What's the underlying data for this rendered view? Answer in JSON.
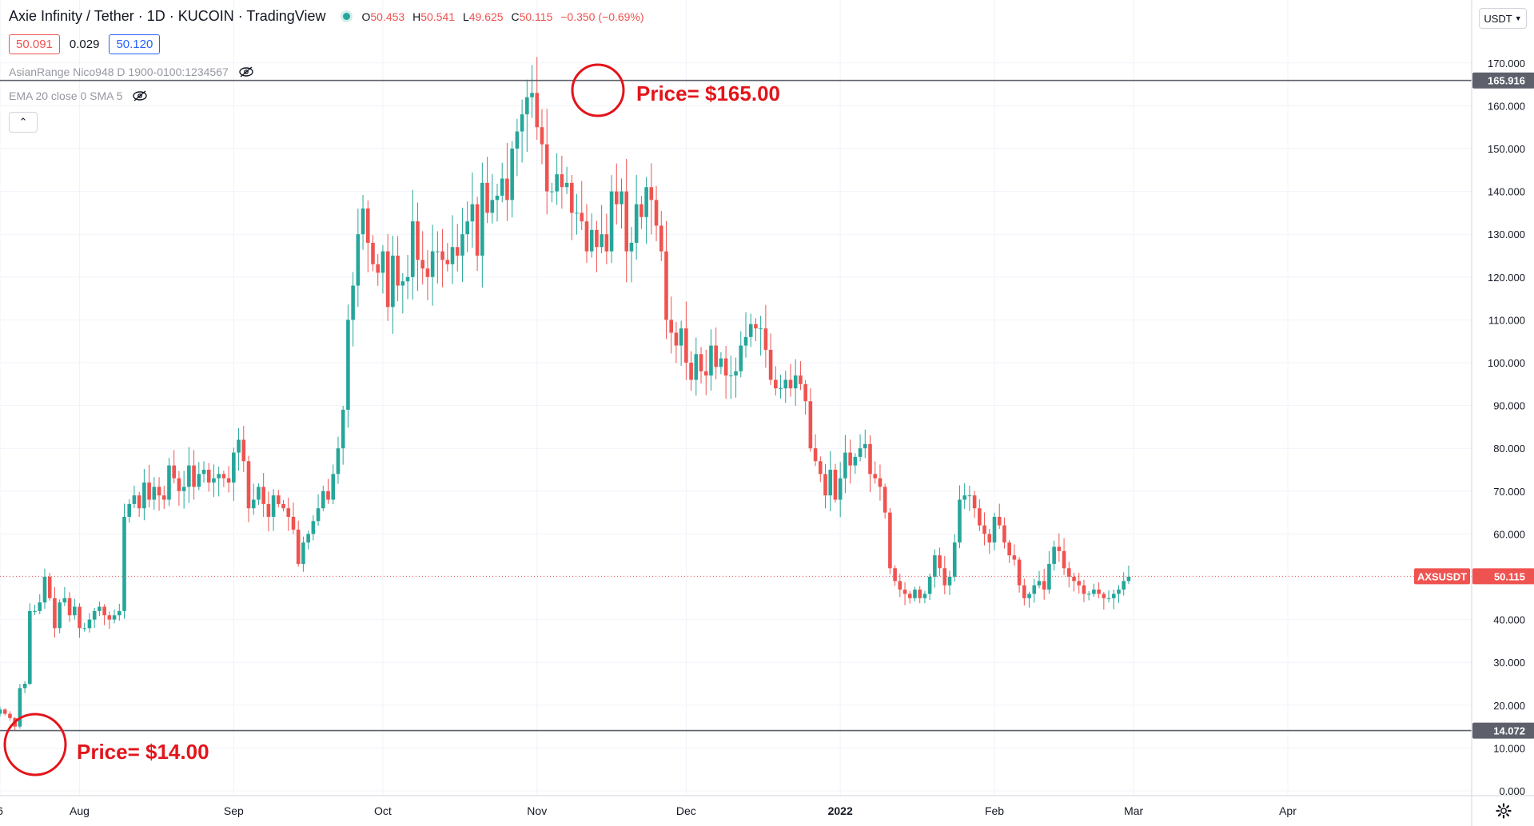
{
  "header": {
    "title": "Axie Infinity / Tether · 1D · KUCOIN · TradingView",
    "ohlc": {
      "o_label": "O",
      "o": "50.453",
      "h_label": "H",
      "h": "50.541",
      "l_label": "L",
      "l": "49.625",
      "c_label": "C",
      "c": "50.115",
      "change": "−0.350 (−0.69%)"
    }
  },
  "price_row": {
    "bid": "50.091",
    "spread": "0.029",
    "ask": "50.120"
  },
  "indicators": [
    {
      "label": "AsianRange Nico948 D 1900-0100:1234567"
    },
    {
      "label": "EMA 20 close 0 SMA 5"
    }
  ],
  "currency_button": "USDT",
  "annotations": {
    "top_label": "Price= $165.00",
    "bottom_label": "Price= $14.00"
  },
  "colors": {
    "up": "#26a69a",
    "down": "#ef5350",
    "annotation": "#e3141a",
    "range_line": "#5d606b",
    "current_price": "#ef5350"
  },
  "chart_data": {
    "type": "candlestick",
    "symbol": "AXSUSDT",
    "timeframe": "1D",
    "ylim": [
      0,
      175
    ],
    "y_ticks": [
      "0.000",
      "10.000",
      "20.000",
      "30.000",
      "40.000",
      "50.000",
      "60.000",
      "70.000",
      "80.000",
      "90.000",
      "100.000",
      "110.000",
      "120.000",
      "130.000",
      "140.000",
      "150.000",
      "160.000",
      "170.000"
    ],
    "x_ticks": [
      {
        "label": "6",
        "date": "2021-07-16"
      },
      {
        "label": "Aug",
        "date": "2021-08-01"
      },
      {
        "label": "Sep",
        "date": "2021-09-01"
      },
      {
        "label": "Oct",
        "date": "2021-10-01"
      },
      {
        "label": "Nov",
        "date": "2021-11-01"
      },
      {
        "label": "Dec",
        "date": "2021-12-01"
      },
      {
        "label": "2022",
        "date": "2022-01-01"
      },
      {
        "label": "Feb",
        "date": "2022-02-01"
      },
      {
        "label": "Mar",
        "date": "2022-03-01"
      },
      {
        "label": "Apr",
        "date": "2022-04-01"
      }
    ],
    "first_candle_date": "2021-07-16",
    "horizontal_lines": [
      {
        "value": 165.916,
        "label": "165.916"
      },
      {
        "value": 14.072,
        "label": "14.072"
      }
    ],
    "current_price": {
      "value": 50.115,
      "label": "50.115",
      "symbol_label": "AXSUSDT"
    },
    "closes": [
      19,
      18,
      17,
      15,
      24,
      25,
      42,
      42,
      44,
      50,
      45,
      38,
      44,
      45,
      41,
      43,
      38,
      38,
      40,
      42,
      43,
      41,
      40,
      41,
      42,
      64,
      67,
      69,
      66,
      72,
      68,
      71,
      69,
      68,
      76,
      73,
      70,
      71,
      76,
      71,
      74,
      75,
      72,
      73,
      74,
      73,
      72,
      79,
      82,
      77,
      66,
      68,
      71,
      67,
      64,
      69,
      67,
      66,
      64,
      61,
      53,
      58,
      60,
      63,
      66,
      70,
      68,
      74,
      80,
      89,
      110,
      118,
      130,
      136,
      128,
      123,
      121,
      126,
      113,
      125,
      118,
      119,
      120,
      133,
      124,
      122,
      120,
      126,
      126,
      124,
      123,
      127,
      125,
      130,
      133,
      137,
      125,
      142,
      135,
      138,
      139,
      143,
      138,
      150,
      154,
      158,
      162,
      163,
      155,
      151,
      140,
      140,
      144,
      141,
      142,
      135,
      135,
      133,
      126,
      131,
      127,
      130,
      126,
      140,
      137,
      140,
      126,
      128,
      137,
      134,
      141,
      138,
      132,
      126,
      110,
      107,
      104,
      108,
      100,
      96,
      102,
      98,
      97,
      104,
      99,
      101,
      97,
      97,
      98,
      104,
      106,
      109,
      108,
      108,
      103,
      96,
      94,
      94,
      96,
      94,
      97,
      95,
      91,
      80,
      77,
      74,
      69,
      75,
      68,
      73,
      79,
      76,
      78,
      80,
      81,
      74,
      73,
      71,
      65,
      52,
      49,
      47,
      46,
      45,
      47,
      45,
      46,
      50,
      55,
      52,
      48,
      50,
      58,
      68,
      69,
      69,
      66,
      62,
      60,
      58,
      64,
      62,
      58,
      55,
      54,
      48,
      45,
      46,
      48,
      49,
      47,
      53,
      57,
      56,
      52,
      50,
      49,
      48,
      46,
      46,
      47,
      46,
      45,
      45,
      46,
      47,
      49,
      50
    ]
  }
}
